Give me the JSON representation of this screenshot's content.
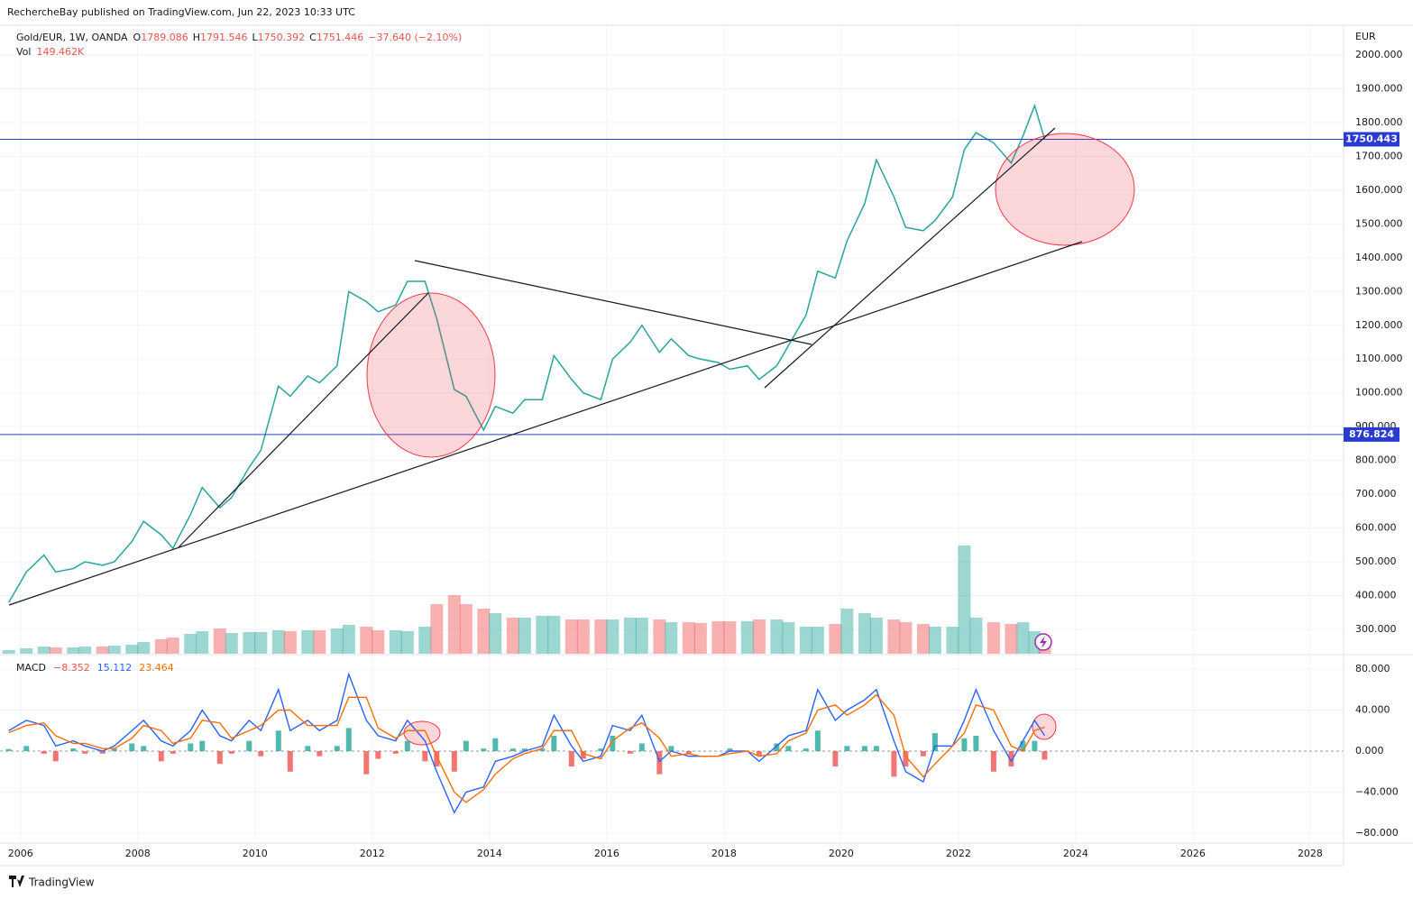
{
  "chart_data": {
    "type": "line",
    "publisher": "RechercheBay published on TradingView.com, Jun 22, 2023 10:33 UTC",
    "title": "Gold/EUR, 1W, OANDA",
    "ohlc": [
      {
        "label": "O",
        "value": 1789.086
      },
      {
        "label": "H",
        "value": 1791.546
      },
      {
        "label": "L",
        "value": 1750.392
      },
      {
        "label": "C",
        "value": 1751.446
      }
    ],
    "change": "−37.640 (−2.10%)",
    "unit": "EUR",
    "footer": "TradingView",
    "up_color": "#26a69a",
    "down_color": "#ef5350",
    "color": "#26a69a",
    "grid": true,
    "xlim": [
      2005.65,
      2028.57
    ],
    "xticks": [
      2006,
      2008,
      2010,
      2012,
      2014,
      2016,
      2018,
      2020,
      2022,
      2024,
      2026,
      2028
    ],
    "ylim": [
      228,
      2088
    ],
    "yticks": [
      {
        "value": 300,
        "label": "300.000"
      },
      {
        "value": 400,
        "label": "400.000"
      },
      {
        "value": 500,
        "label": "500.000"
      },
      {
        "value": 600,
        "label": "600.000"
      },
      {
        "value": 700,
        "label": "700.000"
      },
      {
        "value": 800,
        "label": "800.000"
      },
      {
        "value": 900,
        "label": "900.000"
      },
      {
        "value": 1000,
        "label": "1000.000"
      },
      {
        "value": 1100,
        "label": "1100.000"
      },
      {
        "value": 1200,
        "label": "1200.000"
      },
      {
        "value": 1300,
        "label": "1300.000"
      },
      {
        "value": 1400,
        "label": "1400.000"
      },
      {
        "value": 1500,
        "label": "1500.000"
      },
      {
        "value": 1600,
        "label": "1600.000"
      },
      {
        "value": 1700,
        "label": "1700.000"
      },
      {
        "value": 1800,
        "label": "1800.000"
      },
      {
        "value": 1900,
        "label": "1900.000"
      },
      {
        "value": 2000,
        "label": "2000.000"
      }
    ],
    "hlines": [
      {
        "value": 1750.443,
        "label": "1750.443"
      },
      {
        "value": 876.824,
        "label": "876.824"
      }
    ],
    "hline_color": "#2a3bd1",
    "x": [
      2005.8,
      2006.1,
      2006.4,
      2006.6,
      2006.9,
      2007.1,
      2007.4,
      2007.6,
      2007.9,
      2008.1,
      2008.4,
      2008.6,
      2008.9,
      2009.1,
      2009.4,
      2009.6,
      2009.9,
      2010.1,
      2010.4,
      2010.6,
      2010.9,
      2011.1,
      2011.4,
      2011.6,
      2011.9,
      2012.1,
      2012.4,
      2012.6,
      2012.9,
      2013.1,
      2013.4,
      2013.6,
      2013.9,
      2014.1,
      2014.4,
      2014.6,
      2014.9,
      2015.1,
      2015.4,
      2015.6,
      2015.9,
      2016.1,
      2016.4,
      2016.6,
      2016.9,
      2017.1,
      2017.4,
      2017.6,
      2017.9,
      2018.1,
      2018.4,
      2018.6,
      2018.9,
      2019.1,
      2019.4,
      2019.6,
      2019.9,
      2020.1,
      2020.4,
      2020.6,
      2020.9,
      2021.1,
      2021.4,
      2021.6,
      2021.9,
      2022.1,
      2022.3,
      2022.6,
      2022.9,
      2023.1,
      2023.3,
      2023.47
    ],
    "close": [
      380,
      470,
      520,
      470,
      480,
      500,
      490,
      500,
      560,
      620,
      580,
      540,
      640,
      720,
      660,
      690,
      780,
      830,
      1020,
      990,
      1050,
      1030,
      1080,
      1300,
      1270,
      1240,
      1260,
      1330,
      1330,
      1220,
      1010,
      990,
      890,
      960,
      940,
      980,
      980,
      1110,
      1040,
      1000,
      980,
      1100,
      1150,
      1200,
      1120,
      1160,
      1110,
      1100,
      1090,
      1070,
      1080,
      1040,
      1080,
      1140,
      1230,
      1360,
      1340,
      1450,
      1560,
      1690,
      1580,
      1490,
      1480,
      1510,
      1580,
      1720,
      1770,
      1740,
      1680,
      1760,
      1850,
      1751
    ],
    "volume": {
      "name": "Vol",
      "last_label": "149.462K",
      "vlim": [
        0,
        6970
      ],
      "values": [
        40,
        60,
        80,
        70,
        70,
        80,
        80,
        90,
        100,
        130,
        160,
        180,
        220,
        250,
        280,
        230,
        240,
        240,
        260,
        250,
        260,
        260,
        280,
        320,
        300,
        260,
        260,
        250,
        300,
        550,
        650,
        550,
        500,
        450,
        400,
        400,
        420,
        420,
        380,
        380,
        380,
        380,
        400,
        400,
        380,
        350,
        350,
        340,
        360,
        360,
        360,
        380,
        380,
        350,
        300,
        300,
        330,
        500,
        450,
        400,
        380,
        350,
        330,
        300,
        300,
        1200,
        400,
        350,
        330,
        350,
        250,
        149.462
      ]
    },
    "macd": {
      "name": "MACD",
      "ylim": [
        -89.7,
        93.2
      ],
      "yticks": [
        {
          "value": -80,
          "label": "−80.000"
        },
        {
          "value": -40,
          "label": "−40.000"
        },
        {
          "value": 0,
          "label": "0.000"
        },
        {
          "value": 40,
          "label": "40.000"
        },
        {
          "value": 80,
          "label": "80.000"
        }
      ],
      "histogram": {
        "last_label": "−8.352",
        "color": "#ef5350",
        "up_color": "#26a69a",
        "values": [
          2,
          5,
          -2.5,
          -10,
          2.5,
          -2.5,
          -2.5,
          2.5,
          7.5,
          5,
          -10,
          -2.5,
          7.5,
          10,
          -12.5,
          -2.5,
          10,
          -5,
          20,
          -20,
          5,
          -5,
          5,
          22.5,
          -22.5,
          -7.5,
          -2.5,
          10,
          -10,
          -15,
          -20,
          10,
          2.5,
          12.5,
          2.5,
          2.5,
          2.5,
          15,
          -15,
          -7.5,
          2.5,
          15,
          -2.5,
          7.5,
          -22.5,
          5,
          -2.5,
          0,
          0,
          2.5,
          0,
          -5,
          7.5,
          5,
          2.5,
          20,
          -15,
          5,
          5,
          5,
          -25,
          -15,
          -5,
          17.5,
          0,
          12.5,
          15,
          -20,
          -15,
          10,
          10,
          -8.352
        ]
      },
      "line": {
        "last_label": "15.112",
        "color": "#2962ff",
        "values": [
          20,
          30,
          25,
          5,
          10,
          5,
          0,
          5,
          20,
          30,
          10,
          5,
          20,
          40,
          15,
          10,
          30,
          20,
          60,
          20,
          30,
          20,
          30,
          75,
          30,
          15,
          10,
          30,
          10,
          -20,
          -60,
          -40,
          -35,
          -10,
          -5,
          0,
          5,
          35,
          5,
          -10,
          -5,
          25,
          20,
          35,
          -10,
          0,
          -5,
          -5,
          -5,
          0,
          0,
          -10,
          5,
          15,
          20,
          60,
          30,
          40,
          50,
          60,
          10,
          -20,
          -30,
          5,
          5,
          30,
          60,
          20,
          -10,
          10,
          30,
          15.112
        ]
      },
      "signal": {
        "last_label": "23.464",
        "color": "#ff6d00",
        "values": [
          18,
          25,
          27.5,
          15,
          7.5,
          7.5,
          2.5,
          2.5,
          12.5,
          25,
          20,
          7.5,
          12.5,
          30,
          27.5,
          12.5,
          20,
          25,
          40,
          40,
          25,
          25,
          25,
          52.5,
          52.5,
          22.5,
          12.5,
          20,
          20,
          -5,
          -40,
          -50,
          -37.5,
          -22.5,
          -7.5,
          -2.5,
          2.5,
          20,
          20,
          -2.5,
          -7.5,
          10,
          22.5,
          27.5,
          12.5,
          -5,
          -2.5,
          -5,
          -5,
          -2.5,
          0,
          -5,
          -2.5,
          10,
          17.5,
          40,
          45,
          35,
          45,
          55,
          35,
          -5,
          -25,
          -12.5,
          5,
          17.5,
          45,
          40,
          5,
          0,
          20,
          23.464
        ]
      }
    }
  }
}
